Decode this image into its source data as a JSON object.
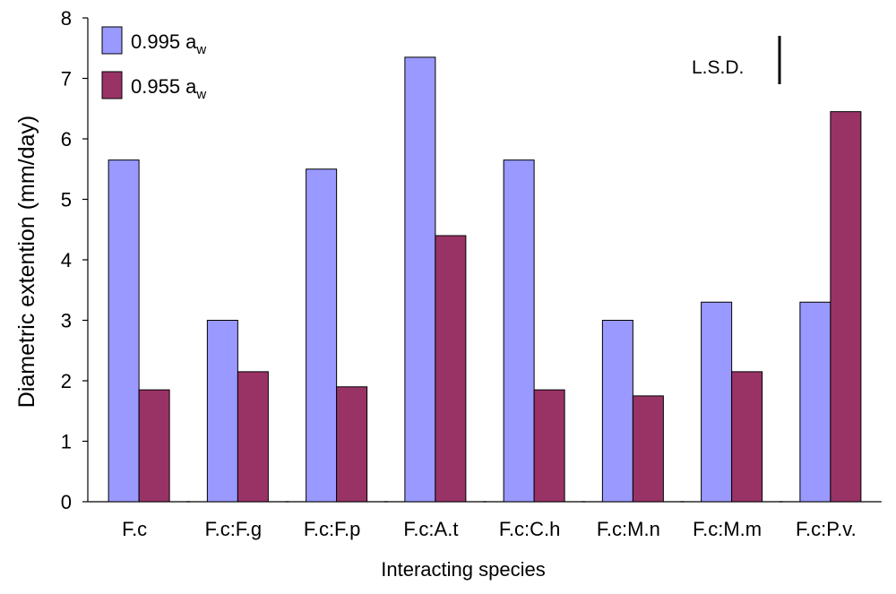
{
  "chart_data": {
    "type": "bar",
    "xlabel": "Interacting species",
    "ylabel": "Diametric extention  (mm/day)",
    "ylim": [
      0,
      8
    ],
    "yticks": [
      0,
      1,
      2,
      3,
      4,
      5,
      6,
      7,
      8
    ],
    "categories": [
      "F.c",
      "F.c:F.g",
      "F.c:F.p",
      "F.c:A.t",
      "F.c:C.h",
      "F.c:M.n",
      "F.c:M.m",
      "F.c:P.v."
    ],
    "series": [
      {
        "name": "0.995 a",
        "name_subscript": "w",
        "color": "#9999ff",
        "values": [
          5.65,
          3.0,
          5.5,
          7.35,
          5.65,
          3.0,
          3.3,
          3.3
        ]
      },
      {
        "name": "0.955 a",
        "name_subscript": "w",
        "color": "#993366",
        "values": [
          1.85,
          2.15,
          1.9,
          4.4,
          1.85,
          1.75,
          2.15,
          6.45
        ]
      }
    ],
    "annotation": {
      "text": "L.S.D.",
      "value": 0.8
    },
    "legend_position": "top-left",
    "grid": false
  }
}
